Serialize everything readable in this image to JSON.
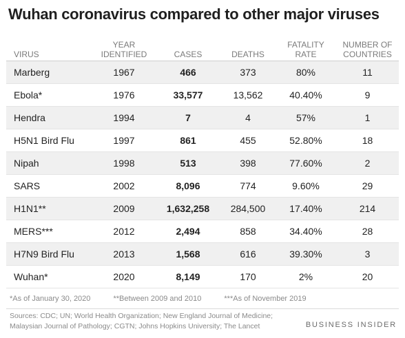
{
  "title": "Wuhan coronavirus compared to other major viruses",
  "columns": [
    "VIRUS",
    "YEAR\nIDENTIFIED",
    "CASES",
    "DEATHS",
    "FATALITY\nRATE",
    "NUMBER OF\nCOUNTRIES"
  ],
  "rows": [
    {
      "virus": "Marberg",
      "year": "1967",
      "cases": "466",
      "deaths": "373",
      "fatality": "80%",
      "countries": "11"
    },
    {
      "virus": "Ebola*",
      "year": "1976",
      "cases": "33,577",
      "deaths": "13,562",
      "fatality": "40.40%",
      "countries": "9"
    },
    {
      "virus": "Hendra",
      "year": "1994",
      "cases": "7",
      "deaths": "4",
      "fatality": "57%",
      "countries": "1"
    },
    {
      "virus": "H5N1 Bird Flu",
      "year": "1997",
      "cases": "861",
      "deaths": "455",
      "fatality": "52.80%",
      "countries": "18"
    },
    {
      "virus": "Nipah",
      "year": "1998",
      "cases": "513",
      "deaths": "398",
      "fatality": "77.60%",
      "countries": "2"
    },
    {
      "virus": "SARS",
      "year": "2002",
      "cases": "8,096",
      "deaths": "774",
      "fatality": "9.60%",
      "countries": "29"
    },
    {
      "virus": "H1N1**",
      "year": "2009",
      "cases": "1,632,258",
      "deaths": "284,500",
      "fatality": "17.40%",
      "countries": "214"
    },
    {
      "virus": "MERS***",
      "year": "2012",
      "cases": "2,494",
      "deaths": "858",
      "fatality": "34.40%",
      "countries": "28"
    },
    {
      "virus": "H7N9 Bird Flu",
      "year": "2013",
      "cases": "1,568",
      "deaths": "616",
      "fatality": "39.30%",
      "countries": "3"
    },
    {
      "virus": "Wuhan*",
      "year": "2020",
      "cases": "8,149",
      "deaths": "170",
      "fatality": "2%",
      "countries": "20"
    }
  ],
  "footnotes": [
    "*As of January 30, 2020",
    "**Between 2009 and 2010",
    "***As of November 2019"
  ],
  "sources": "Sources: CDC; UN; World Health Organization; New England Journal of Medicine;\nMalaysian Journal of Pathology; CGTN; Johns Hopkins University; The Lancet",
  "brand": "BUSINESS INSIDER",
  "colors": {
    "shaded_row": "#f0f0f0",
    "header_text": "#7a7a7a",
    "body_text": "#222222"
  },
  "chart_data": {
    "type": "table",
    "title": "Wuhan coronavirus compared to other major viruses",
    "columns": [
      "VIRUS",
      "YEAR IDENTIFIED",
      "CASES",
      "DEATHS",
      "FATALITY RATE",
      "NUMBER OF COUNTRIES"
    ],
    "rows": [
      [
        "Marberg",
        1967,
        466,
        373,
        "80%",
        11
      ],
      [
        "Ebola*",
        1976,
        33577,
        13562,
        "40.40%",
        9
      ],
      [
        "Hendra",
        1994,
        7,
        4,
        "57%",
        1
      ],
      [
        "H5N1 Bird Flu",
        1997,
        861,
        455,
        "52.80%",
        18
      ],
      [
        "Nipah",
        1998,
        513,
        398,
        "77.60%",
        2
      ],
      [
        "SARS",
        2002,
        8096,
        774,
        "9.60%",
        29
      ],
      [
        "H1N1**",
        2009,
        1632258,
        284500,
        "17.40%",
        214
      ],
      [
        "MERS***",
        2012,
        2494,
        858,
        "34.40%",
        28
      ],
      [
        "H7N9 Bird Flu",
        2013,
        1568,
        616,
        "39.30%",
        3
      ],
      [
        "Wuhan*",
        2020,
        8149,
        170,
        "2%",
        20
      ]
    ]
  }
}
